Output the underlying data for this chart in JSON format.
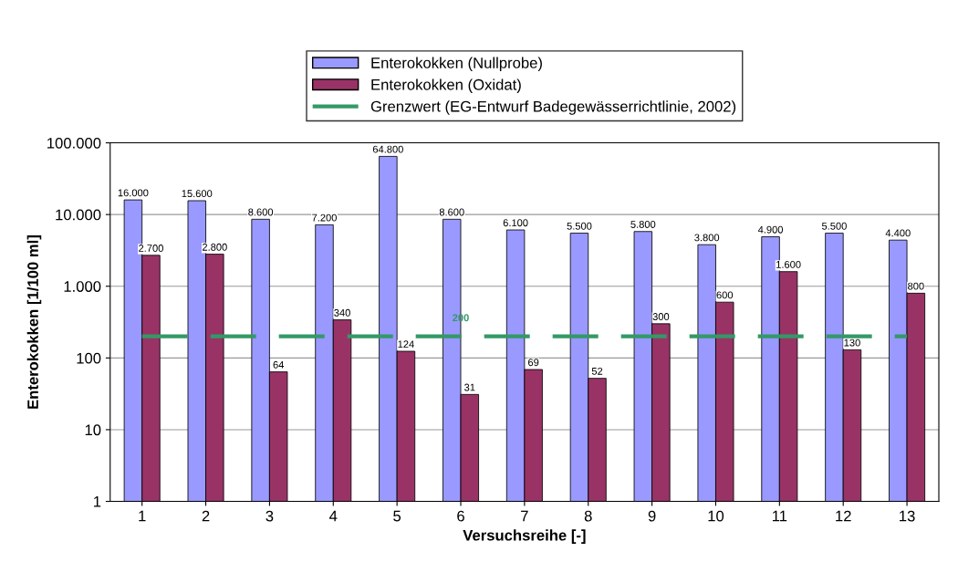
{
  "chart_data": {
    "type": "bar",
    "xlabel": "Versuchsreihe [-]",
    "ylabel": "Enterokokken [1/100 ml]",
    "categories": [
      "1",
      "2",
      "3",
      "4",
      "5",
      "6",
      "7",
      "8",
      "9",
      "10",
      "11",
      "12",
      "13"
    ],
    "series": [
      {
        "name": "Enterokokken (Nullprobe)",
        "color": "#9999ff",
        "values": [
          16000,
          15600,
          8600,
          7200,
          64800,
          8600,
          6100,
          5500,
          5800,
          3800,
          4900,
          5500,
          4400
        ],
        "value_labels": [
          "16.000",
          "15.600",
          "8.600",
          "7.200",
          "64.800",
          "8.600",
          "6.100",
          "5.500",
          "5.800",
          "3.800",
          "4.900",
          "5.500",
          "4.400"
        ]
      },
      {
        "name": "Enterokokken (Oxidat)",
        "color": "#993366",
        "values": [
          2700,
          2800,
          64,
          340,
          124,
          31,
          69,
          52,
          300,
          600,
          1600,
          130,
          800
        ],
        "value_labels": [
          "2.700",
          "2.800",
          "64",
          "340",
          "124",
          "31",
          "69",
          "52",
          "300",
          "600",
          "1.600",
          "130",
          "800"
        ]
      },
      {
        "name": "Grenzwert (EG-Entwurf Badegewässerrichtlinie, 2002)",
        "type": "line",
        "line_style": "dashed",
        "color": "#339966",
        "values": [
          200,
          200,
          200,
          200,
          200,
          200,
          200,
          200,
          200,
          200,
          200,
          200,
          200
        ]
      }
    ],
    "annotations": [
      {
        "text": "200",
        "x": "6",
        "y": 200
      }
    ],
    "log": "y",
    "ylim": [
      1,
      100000
    ],
    "yticks": [
      1,
      10,
      100,
      {
        "value": 1000,
        "label": "1.000"
      },
      {
        "value": 10000,
        "label": "10.000"
      },
      {
        "value": 100000,
        "label": "100.000"
      }
    ],
    "grid": "y",
    "legend": "top"
  }
}
